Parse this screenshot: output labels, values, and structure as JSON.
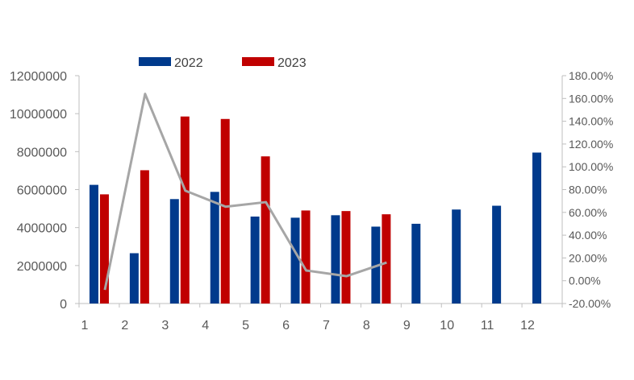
{
  "chart_data": {
    "type": "bar",
    "categories": [
      "1",
      "2",
      "3",
      "4",
      "5",
      "6",
      "7",
      "8",
      "9",
      "10",
      "11",
      "12"
    ],
    "series": [
      {
        "name": "2022",
        "type": "bar",
        "axis": "left",
        "color": "#003A8C",
        "values": [
          6250000,
          2650000,
          5500000,
          5880000,
          4580000,
          4520000,
          4650000,
          4050000,
          4200000,
          4950000,
          5150000,
          7950000
        ]
      },
      {
        "name": "2023",
        "type": "bar",
        "axis": "left",
        "color": "#C00000",
        "values": [
          5750000,
          7020000,
          9850000,
          9720000,
          7750000,
          4900000,
          4870000,
          4700000,
          null,
          null,
          null,
          null
        ]
      },
      {
        "type": "line",
        "axis": "right",
        "color": "#A6A6A6",
        "values": [
          -0.08,
          1.64,
          0.79,
          0.65,
          0.69,
          0.09,
          0.04,
          0.16,
          null,
          null,
          null,
          null
        ]
      }
    ],
    "y_left": {
      "min": 0,
      "max": 12000000,
      "ticks": [
        "0",
        "2000000",
        "4000000",
        "6000000",
        "8000000",
        "10000000",
        "12000000"
      ]
    },
    "y_right": {
      "min": -0.2,
      "max": 1.8,
      "ticks": [
        "-20.00%",
        "0.00%",
        "20.00%",
        "40.00%",
        "60.00%",
        "80.00%",
        "100.00%",
        "120.00%",
        "140.00%",
        "160.00%",
        "180.00%"
      ]
    },
    "legend": {
      "placement": "top-left",
      "items": [
        "2022",
        "2023"
      ]
    },
    "grid": false
  }
}
